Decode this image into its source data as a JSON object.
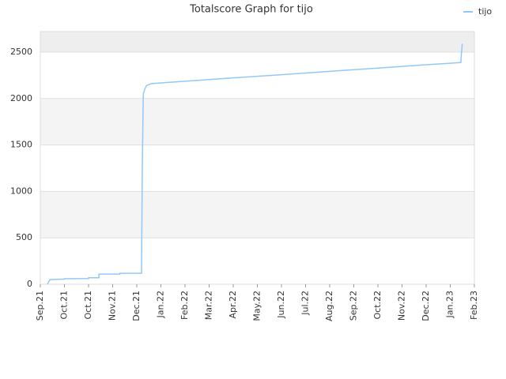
{
  "chart_data": {
    "type": "line",
    "title": "Totalscore Graph for tijo",
    "series": [
      {
        "name": "tijo",
        "color": "#92c8f8",
        "x": [
          0.3,
          0.35,
          0.4,
          1.0,
          1.0,
          2.0,
          2.0,
          2.43,
          2.43,
          3.3,
          3.3,
          4.2,
          4.2,
          4.23,
          4.27,
          4.33,
          4.4,
          4.6,
          5,
          6,
          7,
          8,
          9,
          10,
          11,
          12,
          13,
          14,
          15,
          16,
          17,
          17.44,
          17.46,
          17.5
        ],
        "values": [
          0,
          30,
          50,
          55,
          60,
          62,
          70,
          70,
          110,
          110,
          118,
          118,
          250,
          1280,
          2050,
          2100,
          2140,
          2160,
          2168,
          2186,
          2204,
          2222,
          2240,
          2257,
          2275,
          2293,
          2311,
          2328,
          2346,
          2364,
          2380,
          2388,
          2480,
          2590
        ]
      }
    ],
    "xlim": [
      0,
      18
    ],
    "xticks": [
      {
        "value": 0,
        "label": "Sep.21"
      },
      {
        "value": 1,
        "label": "Oct.21"
      },
      {
        "value": 2,
        "label": "Oct.21"
      },
      {
        "value": 3,
        "label": "Nov.21"
      },
      {
        "value": 4,
        "label": "Dec.21"
      },
      {
        "value": 5,
        "label": "Jan.22"
      },
      {
        "value": 6,
        "label": "Feb.22"
      },
      {
        "value": 7,
        "label": "Mar.22"
      },
      {
        "value": 8,
        "label": "Apr.22"
      },
      {
        "value": 9,
        "label": "May.22"
      },
      {
        "value": 10,
        "label": "Jun.22"
      },
      {
        "value": 11,
        "label": "Jul.22"
      },
      {
        "value": 12,
        "label": "Aug.22"
      },
      {
        "value": 13,
        "label": "Sep.22"
      },
      {
        "value": 14,
        "label": "Oct.22"
      },
      {
        "value": 15,
        "label": "Nov.22"
      },
      {
        "value": 16,
        "label": "Dec.22"
      },
      {
        "value": 17,
        "label": "Jan.23"
      },
      {
        "value": 18,
        "label": "Feb.23"
      }
    ],
    "ylim": [
      0,
      2721
    ],
    "yticks": [
      0,
      500,
      1000,
      1500,
      2000,
      2500
    ],
    "grid": true
  }
}
